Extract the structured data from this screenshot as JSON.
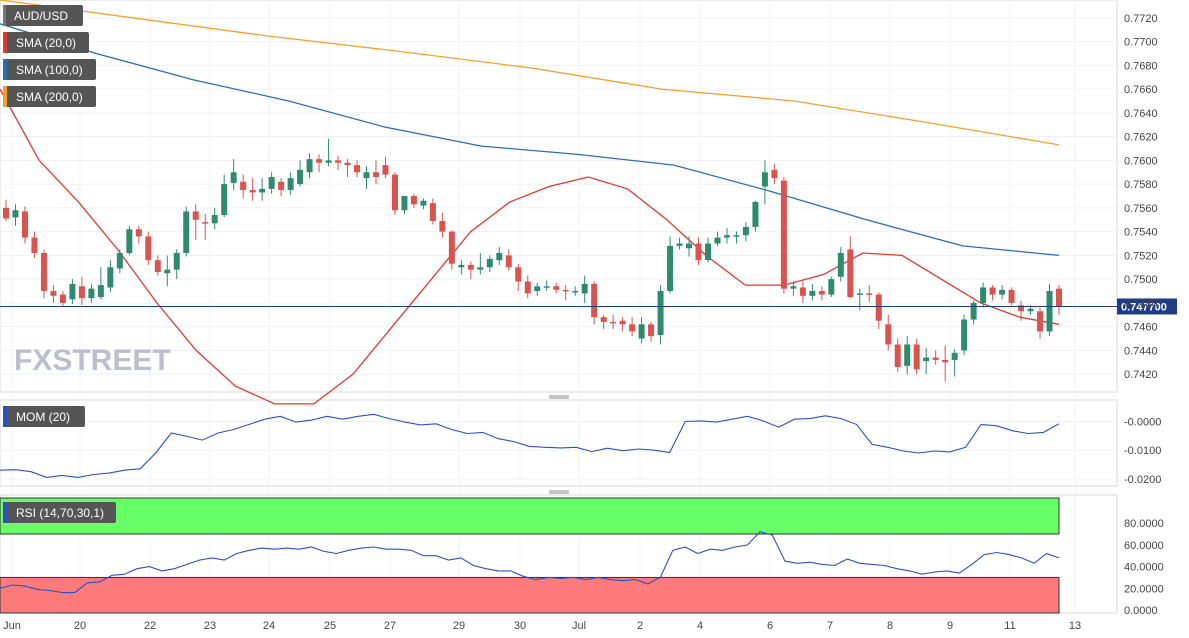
{
  "panels": {
    "main": {
      "label": "AUD/USD",
      "sma20": "SMA (20,0)",
      "sma100": "SMA (100,0)",
      "sma200": "SMA (200,0)",
      "current_price": "0.747700",
      "logo": "FXSTREET"
    },
    "mom": {
      "label": "MOM (20)"
    },
    "rsi": {
      "label": "RSI (14,70,30,1)"
    }
  },
  "colors": {
    "sma20": "#e03a2f",
    "sma100": "#2e6db4",
    "sma200": "#f7a12d",
    "up": "#2e8b6e",
    "down": "#d9534f",
    "indicator": "#2b50c8",
    "rsi_overbought": "#66ff66",
    "rsi_oversold": "#ff7a7a",
    "price_line": "#1f3c88"
  },
  "chart_data": [
    {
      "type": "candlestick",
      "title": "AUD/USD",
      "ylim": [
        0.7405,
        0.7735
      ],
      "y_ticks": [
        "0.7720",
        "0.7700",
        "0.7680",
        "0.7660",
        "0.7640",
        "0.7620",
        "0.7600",
        "0.7580",
        "0.7560",
        "0.7540",
        "0.7520",
        "0.7500",
        "0.7480",
        "0.7460",
        "0.7440",
        "0.7420"
      ],
      "x_tick_labels": [
        "Jun",
        "20",
        "22",
        "23",
        "24",
        "25",
        "27",
        "29",
        "30",
        "Jul",
        "2",
        "4",
        "6",
        "7",
        "8",
        "9",
        "11",
        "13"
      ],
      "current_price": 0.7477,
      "candles": [
        {
          "o": 0.756,
          "h": 0.7567,
          "l": 0.7549,
          "c": 0.7551
        },
        {
          "o": 0.7552,
          "h": 0.7563,
          "l": 0.7545,
          "c": 0.7558
        },
        {
          "o": 0.7557,
          "h": 0.7561,
          "l": 0.753,
          "c": 0.7535
        },
        {
          "o": 0.7535,
          "h": 0.754,
          "l": 0.7518,
          "c": 0.7522
        },
        {
          "o": 0.7522,
          "h": 0.7525,
          "l": 0.7484,
          "c": 0.749
        },
        {
          "o": 0.749,
          "h": 0.7495,
          "l": 0.748,
          "c": 0.7486
        },
        {
          "o": 0.7487,
          "h": 0.749,
          "l": 0.7477,
          "c": 0.748
        },
        {
          "o": 0.7483,
          "h": 0.75,
          "l": 0.7479,
          "c": 0.7496
        },
        {
          "o": 0.7494,
          "h": 0.7502,
          "l": 0.7478,
          "c": 0.7484
        },
        {
          "o": 0.7484,
          "h": 0.7496,
          "l": 0.748,
          "c": 0.7492
        },
        {
          "o": 0.7485,
          "h": 0.751,
          "l": 0.7483,
          "c": 0.7495
        },
        {
          "o": 0.7493,
          "h": 0.7516,
          "l": 0.7489,
          "c": 0.751
        },
        {
          "o": 0.7509,
          "h": 0.7525,
          "l": 0.7505,
          "c": 0.7522
        },
        {
          "o": 0.7522,
          "h": 0.7545,
          "l": 0.752,
          "c": 0.7542
        },
        {
          "o": 0.7542,
          "h": 0.7545,
          "l": 0.753,
          "c": 0.7536
        },
        {
          "o": 0.7536,
          "h": 0.754,
          "l": 0.7512,
          "c": 0.7516
        },
        {
          "o": 0.7516,
          "h": 0.752,
          "l": 0.7503,
          "c": 0.7506
        },
        {
          "o": 0.7505,
          "h": 0.752,
          "l": 0.7494,
          "c": 0.7508
        },
        {
          "o": 0.7508,
          "h": 0.7525,
          "l": 0.75,
          "c": 0.7522
        },
        {
          "o": 0.7522,
          "h": 0.7561,
          "l": 0.7519,
          "c": 0.7557
        },
        {
          "o": 0.7557,
          "h": 0.7563,
          "l": 0.7533,
          "c": 0.755
        },
        {
          "o": 0.7548,
          "h": 0.7555,
          "l": 0.7533,
          "c": 0.7547
        },
        {
          "o": 0.7547,
          "h": 0.756,
          "l": 0.7542,
          "c": 0.7554
        },
        {
          "o": 0.7554,
          "h": 0.7588,
          "l": 0.7552,
          "c": 0.758
        },
        {
          "o": 0.7581,
          "h": 0.7601,
          "l": 0.7575,
          "c": 0.759
        },
        {
          "o": 0.7582,
          "h": 0.7588,
          "l": 0.7568,
          "c": 0.7575
        },
        {
          "o": 0.7575,
          "h": 0.7585,
          "l": 0.7566,
          "c": 0.7573
        },
        {
          "o": 0.7573,
          "h": 0.7585,
          "l": 0.7566,
          "c": 0.7576
        },
        {
          "o": 0.7576,
          "h": 0.759,
          "l": 0.7572,
          "c": 0.7586
        },
        {
          "o": 0.7582,
          "h": 0.7585,
          "l": 0.757,
          "c": 0.7575
        },
        {
          "o": 0.7575,
          "h": 0.759,
          "l": 0.7571,
          "c": 0.7585
        },
        {
          "o": 0.758,
          "h": 0.76,
          "l": 0.7578,
          "c": 0.7592
        },
        {
          "o": 0.759,
          "h": 0.7606,
          "l": 0.7585,
          "c": 0.7601
        },
        {
          "o": 0.7601,
          "h": 0.7605,
          "l": 0.759,
          "c": 0.7598
        },
        {
          "o": 0.7598,
          "h": 0.7618,
          "l": 0.7595,
          "c": 0.76
        },
        {
          "o": 0.76,
          "h": 0.7604,
          "l": 0.7592,
          "c": 0.7598
        },
        {
          "o": 0.7598,
          "h": 0.7601,
          "l": 0.7586,
          "c": 0.7596
        },
        {
          "o": 0.7596,
          "h": 0.76,
          "l": 0.7586,
          "c": 0.759
        },
        {
          "o": 0.7585,
          "h": 0.7595,
          "l": 0.7576,
          "c": 0.759
        },
        {
          "o": 0.759,
          "h": 0.76,
          "l": 0.758,
          "c": 0.7586
        },
        {
          "o": 0.7596,
          "h": 0.7603,
          "l": 0.7585,
          "c": 0.7588
        },
        {
          "o": 0.7588,
          "h": 0.759,
          "l": 0.7554,
          "c": 0.7558
        },
        {
          "o": 0.7558,
          "h": 0.757,
          "l": 0.7555,
          "c": 0.757
        },
        {
          "o": 0.757,
          "h": 0.7572,
          "l": 0.756,
          "c": 0.7563
        },
        {
          "o": 0.7562,
          "h": 0.7568,
          "l": 0.7559,
          "c": 0.7566
        },
        {
          "o": 0.7564,
          "h": 0.7568,
          "l": 0.7546,
          "c": 0.7549
        },
        {
          "o": 0.7549,
          "h": 0.7556,
          "l": 0.7535,
          "c": 0.754
        },
        {
          "o": 0.754,
          "h": 0.7541,
          "l": 0.7508,
          "c": 0.7513
        },
        {
          "o": 0.751,
          "h": 0.7516,
          "l": 0.7504,
          "c": 0.7512
        },
        {
          "o": 0.7512,
          "h": 0.7515,
          "l": 0.75,
          "c": 0.7508
        },
        {
          "o": 0.7508,
          "h": 0.7522,
          "l": 0.7504,
          "c": 0.751
        },
        {
          "o": 0.751,
          "h": 0.752,
          "l": 0.7506,
          "c": 0.7517
        },
        {
          "o": 0.7516,
          "h": 0.7527,
          "l": 0.7512,
          "c": 0.7522
        },
        {
          "o": 0.752,
          "h": 0.7525,
          "l": 0.7507,
          "c": 0.751
        },
        {
          "o": 0.751,
          "h": 0.7513,
          "l": 0.749,
          "c": 0.7498
        },
        {
          "o": 0.7498,
          "h": 0.7503,
          "l": 0.7484,
          "c": 0.7488
        },
        {
          "o": 0.749,
          "h": 0.7497,
          "l": 0.7486,
          "c": 0.7494
        },
        {
          "o": 0.7494,
          "h": 0.7499,
          "l": 0.749,
          "c": 0.7494
        },
        {
          "o": 0.7494,
          "h": 0.7497,
          "l": 0.7488,
          "c": 0.7491
        },
        {
          "o": 0.7491,
          "h": 0.7495,
          "l": 0.7482,
          "c": 0.749
        },
        {
          "o": 0.749,
          "h": 0.7494,
          "l": 0.7486,
          "c": 0.749
        },
        {
          "o": 0.7488,
          "h": 0.7503,
          "l": 0.748,
          "c": 0.7496
        },
        {
          "o": 0.7496,
          "h": 0.7498,
          "l": 0.7462,
          "c": 0.7468
        },
        {
          "o": 0.7468,
          "h": 0.747,
          "l": 0.7458,
          "c": 0.7464
        },
        {
          "o": 0.7464,
          "h": 0.747,
          "l": 0.7458,
          "c": 0.7463
        },
        {
          "o": 0.7465,
          "h": 0.7468,
          "l": 0.7456,
          "c": 0.7462
        },
        {
          "o": 0.7462,
          "h": 0.7468,
          "l": 0.7452,
          "c": 0.7456
        },
        {
          "o": 0.745,
          "h": 0.7468,
          "l": 0.7446,
          "c": 0.7462
        },
        {
          "o": 0.7462,
          "h": 0.7464,
          "l": 0.7447,
          "c": 0.7452
        },
        {
          "o": 0.7453,
          "h": 0.7495,
          "l": 0.7445,
          "c": 0.749
        },
        {
          "o": 0.749,
          "h": 0.7536,
          "l": 0.7488,
          "c": 0.7528
        },
        {
          "o": 0.7528,
          "h": 0.7535,
          "l": 0.7525,
          "c": 0.753
        },
        {
          "o": 0.7526,
          "h": 0.7536,
          "l": 0.7519,
          "c": 0.753
        },
        {
          "o": 0.753,
          "h": 0.7535,
          "l": 0.7512,
          "c": 0.7516
        },
        {
          "o": 0.7516,
          "h": 0.7535,
          "l": 0.7514,
          "c": 0.753
        },
        {
          "o": 0.753,
          "h": 0.754,
          "l": 0.7528,
          "c": 0.7535
        },
        {
          "o": 0.7535,
          "h": 0.7543,
          "l": 0.753,
          "c": 0.7537
        },
        {
          "o": 0.7536,
          "h": 0.754,
          "l": 0.753,
          "c": 0.7537
        },
        {
          "o": 0.7537,
          "h": 0.7548,
          "l": 0.7532,
          "c": 0.7544
        },
        {
          "o": 0.7544,
          "h": 0.7566,
          "l": 0.754,
          "c": 0.7565
        },
        {
          "o": 0.7578,
          "h": 0.76,
          "l": 0.7563,
          "c": 0.759
        },
        {
          "o": 0.7592,
          "h": 0.7597,
          "l": 0.758,
          "c": 0.7585
        },
        {
          "o": 0.7583,
          "h": 0.7586,
          "l": 0.7488,
          "c": 0.7492
        },
        {
          "o": 0.7492,
          "h": 0.7498,
          "l": 0.7486,
          "c": 0.7494
        },
        {
          "o": 0.7493,
          "h": 0.7498,
          "l": 0.748,
          "c": 0.7486
        },
        {
          "o": 0.7486,
          "h": 0.7496,
          "l": 0.7482,
          "c": 0.749
        },
        {
          "o": 0.749,
          "h": 0.7494,
          "l": 0.7482,
          "c": 0.7487
        },
        {
          "o": 0.7487,
          "h": 0.7502,
          "l": 0.7485,
          "c": 0.75
        },
        {
          "o": 0.7502,
          "h": 0.7527,
          "l": 0.7498,
          "c": 0.7522
        },
        {
          "o": 0.7525,
          "h": 0.7536,
          "l": 0.7484,
          "c": 0.7485
        },
        {
          "o": 0.7487,
          "h": 0.7492,
          "l": 0.7474,
          "c": 0.7488
        },
        {
          "o": 0.7488,
          "h": 0.7495,
          "l": 0.7481,
          "c": 0.7487
        },
        {
          "o": 0.7487,
          "h": 0.7489,
          "l": 0.7458,
          "c": 0.7465
        },
        {
          "o": 0.7462,
          "h": 0.747,
          "l": 0.744,
          "c": 0.7445
        },
        {
          "o": 0.7445,
          "h": 0.745,
          "l": 0.7422,
          "c": 0.7426
        },
        {
          "o": 0.7427,
          "h": 0.7452,
          "l": 0.742,
          "c": 0.7445
        },
        {
          "o": 0.7445,
          "h": 0.745,
          "l": 0.742,
          "c": 0.7424
        },
        {
          "o": 0.7431,
          "h": 0.7442,
          "l": 0.742,
          "c": 0.7434
        },
        {
          "o": 0.7434,
          "h": 0.744,
          "l": 0.7428,
          "c": 0.7432
        },
        {
          "o": 0.7432,
          "h": 0.7444,
          "l": 0.7414,
          "c": 0.743
        },
        {
          "o": 0.7432,
          "h": 0.7441,
          "l": 0.7418,
          "c": 0.7438
        },
        {
          "o": 0.744,
          "h": 0.747,
          "l": 0.7436,
          "c": 0.7466
        },
        {
          "o": 0.7466,
          "h": 0.7482,
          "l": 0.7462,
          "c": 0.748
        },
        {
          "o": 0.748,
          "h": 0.7497,
          "l": 0.7476,
          "c": 0.7493
        },
        {
          "o": 0.7493,
          "h": 0.7495,
          "l": 0.7482,
          "c": 0.7487
        },
        {
          "o": 0.7487,
          "h": 0.7495,
          "l": 0.7483,
          "c": 0.7491
        },
        {
          "o": 0.7491,
          "h": 0.7493,
          "l": 0.7478,
          "c": 0.748
        },
        {
          "o": 0.7478,
          "h": 0.7482,
          "l": 0.7465,
          "c": 0.7473
        },
        {
          "o": 0.7473,
          "h": 0.7478,
          "l": 0.747,
          "c": 0.7475
        },
        {
          "o": 0.7473,
          "h": 0.7476,
          "l": 0.745,
          "c": 0.7456
        },
        {
          "o": 0.7456,
          "h": 0.7496,
          "l": 0.7452,
          "c": 0.749
        },
        {
          "o": 0.7492,
          "h": 0.7495,
          "l": 0.747,
          "c": 0.7477
        }
      ],
      "sma20": [
        0.766,
        0.76,
        0.7565,
        0.7525,
        0.748,
        0.744,
        0.741,
        0.7395,
        0.7395,
        0.742,
        0.746,
        0.75,
        0.754,
        0.7565,
        0.7578,
        0.7586,
        0.7576,
        0.755,
        0.752,
        0.7495,
        0.7495,
        0.7504,
        0.7522,
        0.752,
        0.75,
        0.748,
        0.7468,
        0.7462
      ],
      "sma100": [
        0.7715,
        0.769,
        0.7668,
        0.765,
        0.7628,
        0.7612,
        0.7605,
        0.7596,
        0.7574,
        0.755,
        0.7528,
        0.752
      ],
      "sma200": [
        0.7735,
        0.772,
        0.7705,
        0.7692,
        0.7678,
        0.766,
        0.765,
        0.7632,
        0.7613
      ]
    },
    {
      "type": "line",
      "title": "MOM (20)",
      "ylim": [
        -0.0225,
        0.0075
      ],
      "y_ticks": [
        "-0.0000",
        "-0.0100",
        "-0.0200"
      ],
      "values": [
        -0.017,
        -0.0168,
        -0.0175,
        -0.0195,
        -0.0188,
        -0.0195,
        -0.0185,
        -0.018,
        -0.017,
        -0.0165,
        -0.011,
        -0.004,
        -0.0052,
        -0.0065,
        -0.004,
        -0.0028,
        -0.001,
        0.0008,
        0.0018,
        -0.0002,
        0.0005,
        0.0018,
        0.0008,
        0.0018,
        0.0025,
        0.001,
        -0.0002,
        -0.0012,
        -0.0008,
        -0.0028,
        -0.0042,
        -0.0038,
        -0.006,
        -0.007,
        -0.0087,
        -0.009,
        -0.0092,
        -0.009,
        -0.0105,
        -0.0093,
        -0.0102,
        -0.0096,
        -0.01,
        -0.0108,
        0.0,
        0.0002,
        -0.0002,
        0.0008,
        0.0018,
        0.0002,
        -0.002,
        0.0008,
        0.001,
        0.002,
        0.001,
        -0.001,
        -0.008,
        -0.009,
        -0.0103,
        -0.011,
        -0.0103,
        -0.0106,
        -0.009,
        -0.001,
        -0.0015,
        -0.0032,
        -0.0042,
        -0.0038,
        -0.0008
      ]
    },
    {
      "type": "line",
      "title": "RSI (14,70,30,1)",
      "ylim": [
        0,
        100
      ],
      "y_ticks": [
        "80.0000",
        "60.0000",
        "40.0000",
        "20.0000",
        "0.0000"
      ],
      "overbought": 70,
      "oversold": 30,
      "values": [
        20,
        23,
        22,
        19,
        18,
        16,
        16,
        25,
        26,
        32,
        33,
        38,
        40,
        36,
        38,
        42,
        46,
        48,
        46,
        52,
        55,
        57,
        56,
        57,
        56,
        58,
        54,
        52,
        55,
        57,
        58,
        56,
        56,
        55,
        50,
        50,
        46,
        48,
        41,
        38,
        36,
        36,
        31,
        28,
        30,
        29,
        30,
        28,
        30,
        28,
        27,
        28,
        24,
        30,
        55,
        58,
        52,
        56,
        55,
        58,
        60,
        72,
        69,
        45,
        43,
        44,
        42,
        41,
        47,
        43,
        42,
        41,
        38,
        36,
        33,
        35,
        36,
        34,
        42,
        51,
        53,
        51,
        48,
        43,
        52,
        48
      ]
    }
  ]
}
